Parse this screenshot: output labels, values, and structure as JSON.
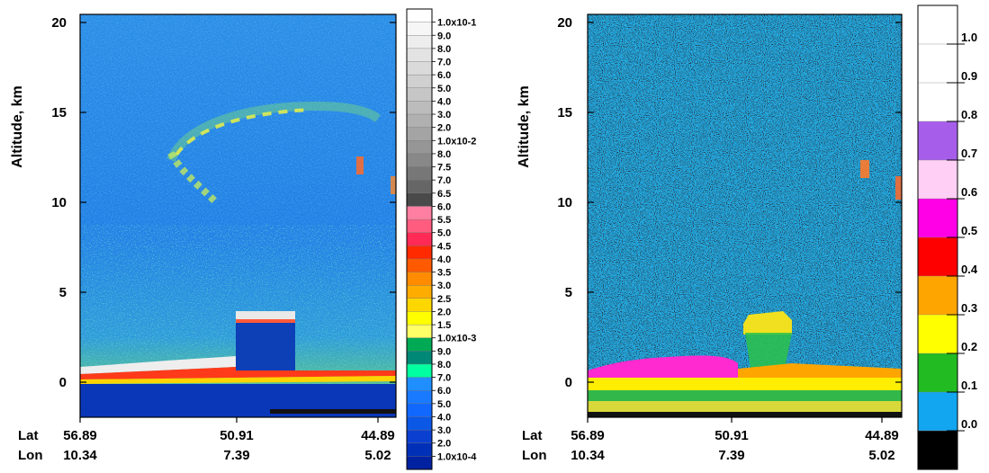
{
  "chart_data": [
    {
      "type": "heatmap",
      "title": "",
      "ylabel": "Altitude, km",
      "ylim": [
        -1.8,
        20.6
      ],
      "yticks": [
        0,
        5,
        10,
        15,
        20
      ],
      "xaxis_rows": [
        {
          "label": "Lat",
          "values": [
            "56.89",
            "50.91",
            "44.89"
          ]
        },
        {
          "label": "Lon",
          "values": [
            "10.34",
            "7.39",
            "5.02"
          ]
        }
      ],
      "colorbar": {
        "labels": [
          "1.0x10-1",
          "9.0",
          "8.0",
          "7.0",
          "6.0",
          "5.0",
          "4.0",
          "3.0",
          "2.0",
          "1.0x10-2",
          "8.0",
          "7.5",
          "7.0",
          "6.5",
          "6.0",
          "5.5",
          "5.0",
          "4.5",
          "4.0",
          "3.5",
          "3.0",
          "2.5",
          "2.0",
          "1.5",
          "1.0x10-3",
          "9.0",
          "8.0",
          "7.0",
          "6.0",
          "5.0",
          "4.0",
          "3.0",
          "2.0",
          "1.0x10-4"
        ],
        "colors": [
          "#ffffff",
          "#f6f6f6",
          "#ededed",
          "#e3e3e3",
          "#dadada",
          "#d0d0d0",
          "#c6c6c6",
          "#bcbcbc",
          "#b0b0b0",
          "#a4a4a4",
          "#969696",
          "#888888",
          "#777777",
          "#666666",
          "#4a4a4a",
          "#ff7fa2",
          "#ff5c80",
          "#ff2a55",
          "#ff2a00",
          "#ff5a00",
          "#ff8c00",
          "#ffac00",
          "#ffd700",
          "#ffff00",
          "#ffff66",
          "#00aa55",
          "#008877",
          "#00ffa0",
          "#1f8fff",
          "#1a7aff",
          "#1168ff",
          "#0b57e6",
          "#0a3fd0",
          "#0030b8",
          "#0022a0"
        ]
      },
      "features": [
        {
          "name": "surface return",
          "altitude_km": 0.4
        },
        {
          "name": "low dense layer",
          "altitude_km": [
            0,
            3.6
          ],
          "lat_range": [
            "52.6",
            "49.8"
          ]
        },
        {
          "name": "upper arc",
          "altitude_km": [
            10,
            15
          ]
        }
      ]
    },
    {
      "type": "heatmap",
      "title": "",
      "ylabel": "Altitude, km",
      "ylim": [
        -1.8,
        20.6
      ],
      "yticks": [
        0,
        5,
        10,
        15,
        20
      ],
      "xaxis_rows": [
        {
          "label": "Lat",
          "values": [
            "56.89",
            "50.91",
            "44.89"
          ]
        },
        {
          "label": "Lon",
          "values": [
            "10.34",
            "7.39",
            "5.02"
          ]
        }
      ],
      "colorbar": {
        "labels": [
          "1.0",
          "0.9",
          "0.8",
          "0.7",
          "0.6",
          "0.5",
          "0.4",
          "0.3",
          "0.2",
          "0.1",
          "0.0"
        ],
        "bins": [
          {
            "from": 1.0,
            "to": 1.1,
            "color": "#ffffff"
          },
          {
            "from": 0.9,
            "to": 1.0,
            "color": "#ffffff"
          },
          {
            "from": 0.8,
            "to": 0.9,
            "color": "#ffffff"
          },
          {
            "from": 0.7,
            "to": 0.8,
            "color": "#a65eea"
          },
          {
            "from": 0.6,
            "to": 0.7,
            "color": "#ffcff5"
          },
          {
            "from": 0.5,
            "to": 0.6,
            "color": "#ff00e6"
          },
          {
            "from": 0.4,
            "to": 0.5,
            "color": "#ff0000"
          },
          {
            "from": 0.3,
            "to": 0.4,
            "color": "#ffa500"
          },
          {
            "from": 0.2,
            "to": 0.3,
            "color": "#ffff00"
          },
          {
            "from": 0.1,
            "to": 0.2,
            "color": "#22bb22"
          },
          {
            "from": 0.0,
            "to": 0.1,
            "color": "#12a6f0"
          },
          {
            "from": -0.1,
            "to": 0.0,
            "color": "#000000"
          }
        ]
      }
    }
  ]
}
